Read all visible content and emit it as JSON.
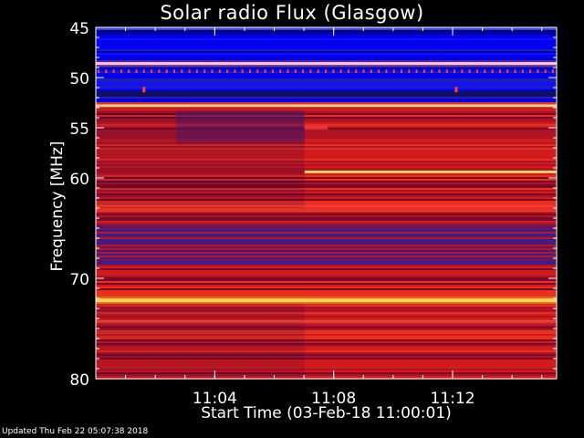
{
  "chart_data": {
    "type": "heatmap",
    "title": "Solar radio Flux (Glasgow)",
    "ylabel": "Frequency [MHz]",
    "xlabel": "Start Time (03-Feb-18 11:00:01)",
    "ylim": [
      45,
      80
    ],
    "y_ticks": [
      "45",
      "50",
      "55",
      "60",
      "70",
      "80"
    ],
    "x_ticks": [
      "11:04",
      "11:08",
      "11:12"
    ],
    "x_range_minutes": [
      11.0,
      11.2583
    ],
    "colormap": [
      "#000080",
      "#0000ff",
      "#3030a0",
      "#a01030",
      "#e01818",
      "#ff6040",
      "#ffe060"
    ],
    "notable_features": [
      {
        "freq_mhz": 48.6,
        "intensity": "high",
        "pattern": "periodic dotted interference"
      },
      {
        "freq_mhz": 52.8,
        "intensity": "high"
      },
      {
        "freq_mhz": 59.4,
        "intensity": "high",
        "starts_at": "11:07"
      },
      {
        "freq_mhz": 72.2,
        "intensity": "very high"
      }
    ]
  },
  "footer": "Updated Thu Feb 22 05:07:38 2018"
}
